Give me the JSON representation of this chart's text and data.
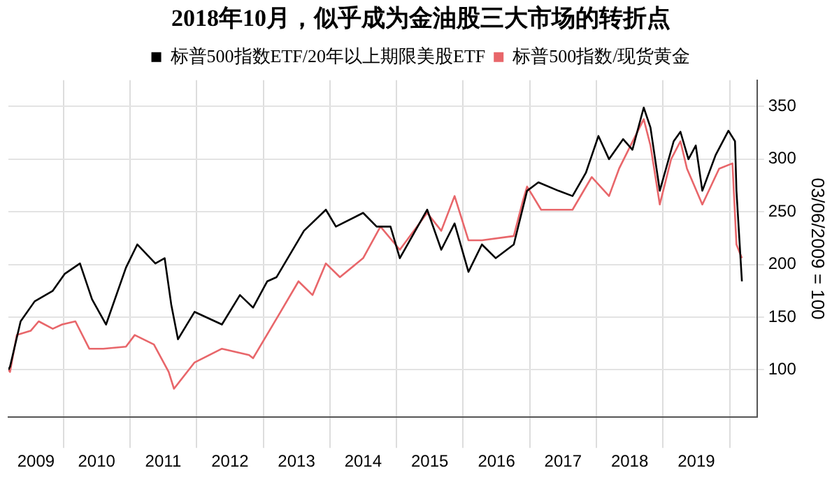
{
  "chart_data": {
    "type": "line",
    "title": "2018年10月，似乎成为金油股三大市场的转折点",
    "ylabel": "03/06/2009 = 100",
    "legend": "top",
    "grid": true,
    "marker": "none",
    "line_style": "solid",
    "xlim": [
      "2009-03-06",
      "2020-05-30"
    ],
    "ylim": [
      55,
      375
    ],
    "yticks": [
      100,
      150,
      200,
      250,
      300,
      350
    ],
    "xticks": [
      {
        "value": "2009-08-04",
        "label": "2009"
      },
      {
        "value": "2010-01-01",
        "label": null
      },
      {
        "value": "2010-07-02",
        "label": "2010"
      },
      {
        "value": "2011-01-01",
        "label": null
      },
      {
        "value": "2011-07-02",
        "label": "2011"
      },
      {
        "value": "2012-01-01",
        "label": null
      },
      {
        "value": "2012-07-02",
        "label": "2012"
      },
      {
        "value": "2013-01-01",
        "label": null
      },
      {
        "value": "2013-07-02",
        "label": "2013"
      },
      {
        "value": "2014-01-01",
        "label": null
      },
      {
        "value": "2014-07-02",
        "label": "2014"
      },
      {
        "value": "2015-01-01",
        "label": null
      },
      {
        "value": "2015-07-02",
        "label": "2015"
      },
      {
        "value": "2016-01-01",
        "label": null
      },
      {
        "value": "2016-07-02",
        "label": "2016"
      },
      {
        "value": "2017-01-01",
        "label": null
      },
      {
        "value": "2017-07-02",
        "label": "2017"
      },
      {
        "value": "2018-01-01",
        "label": null
      },
      {
        "value": "2018-07-02",
        "label": "2018"
      },
      {
        "value": "2019-01-01",
        "label": null
      },
      {
        "value": "2019-07-02",
        "label": "2019"
      },
      {
        "value": "2020-01-01",
        "label": null
      }
    ],
    "series": [
      {
        "name": "标普500指数ETF/20年以上期限美股ETF",
        "color": "#000000",
        "x": [
          "2009-03-06",
          "2009-03-15",
          "2009-05-12",
          "2009-07-28",
          "2009-11-04",
          "2010-01-08",
          "2010-04-02",
          "2010-06-07",
          "2010-08-23",
          "2010-12-10",
          "2011-02-10",
          "2011-05-20",
          "2011-07-10",
          "2011-08-15",
          "2011-09-21",
          "2011-12-21",
          "2012-05-19",
          "2012-08-26",
          "2012-11-06",
          "2013-01-23",
          "2013-03-15",
          "2013-08-12",
          "2013-12-10",
          "2014-02-03",
          "2014-07-02",
          "2014-09-14",
          "2014-11-29",
          "2015-01-19",
          "2015-06-18",
          "2015-09-03",
          "2015-11-15",
          "2016-01-30",
          "2016-04-13",
          "2016-06-28",
          "2016-10-05",
          "2016-12-17",
          "2017-02-17",
          "2017-06-07",
          "2017-08-23",
          "2017-11-04",
          "2018-01-12",
          "2018-03-11",
          "2018-05-27",
          "2018-07-17",
          "2018-09-17",
          "2018-10-24",
          "2018-12-14",
          "2019-02-28",
          "2019-04-06",
          "2019-05-20",
          "2019-06-29",
          "2019-08-04",
          "2019-10-16",
          "2019-12-25",
          "2020-01-30",
          "2020-02-07",
          "2020-03-08"
        ],
        "values": [
          100,
          103,
          146,
          165,
          175,
          191,
          201,
          167,
          143,
          197,
          219,
          201,
          206,
          162,
          129,
          155,
          143,
          171,
          159,
          184,
          188,
          232,
          252,
          236,
          249,
          236,
          236,
          206,
          252,
          214,
          239,
          193,
          219,
          206,
          219,
          270,
          278,
          270,
          265,
          287,
          322,
          300,
          319,
          309,
          349,
          330,
          270,
          317,
          326,
          300,
          313,
          270,
          304,
          327,
          317,
          270,
          184
        ]
      },
      {
        "name": "标普500指数/现货黄金",
        "color": "#e8666a",
        "x": [
          "2009-03-06",
          "2009-03-15",
          "2009-04-21",
          "2009-07-06",
          "2009-08-19",
          "2009-11-04",
          "2009-12-25",
          "2010-03-08",
          "2010-05-23",
          "2010-08-08",
          "2010-12-10",
          "2011-01-27",
          "2011-05-12",
          "2011-08-01",
          "2011-08-30",
          "2011-12-21",
          "2012-05-19",
          "2012-10-15",
          "2012-11-06",
          "2013-04-06",
          "2013-07-13",
          "2013-09-28",
          "2013-12-10",
          "2014-02-25",
          "2014-07-02",
          "2014-10-05",
          "2015-01-19",
          "2015-06-18",
          "2015-09-03",
          "2015-11-15",
          "2016-01-30",
          "2016-04-13",
          "2016-10-05",
          "2016-11-25",
          "2016-12-17",
          "2017-03-04",
          "2017-08-23",
          "2017-12-06",
          "2018-03-11",
          "2018-05-05",
          "2018-09-17",
          "2018-10-24",
          "2018-12-14",
          "2019-02-14",
          "2019-04-06",
          "2019-05-12",
          "2019-08-04",
          "2019-11-04",
          "2020-01-16",
          "2020-02-07",
          "2020-03-08"
        ],
        "values": [
          100,
          98,
          133,
          137,
          146,
          139,
          143,
          146,
          120,
          120,
          122,
          133,
          124,
          98,
          82,
          107,
          120,
          114,
          111,
          155,
          184,
          171,
          201,
          188,
          206,
          236,
          214,
          249,
          232,
          265,
          223,
          223,
          227,
          261,
          274,
          252,
          252,
          283,
          265,
          291,
          338,
          313,
          257,
          300,
          317,
          291,
          257,
          291,
          296,
          219,
          206
        ]
      }
    ]
  }
}
